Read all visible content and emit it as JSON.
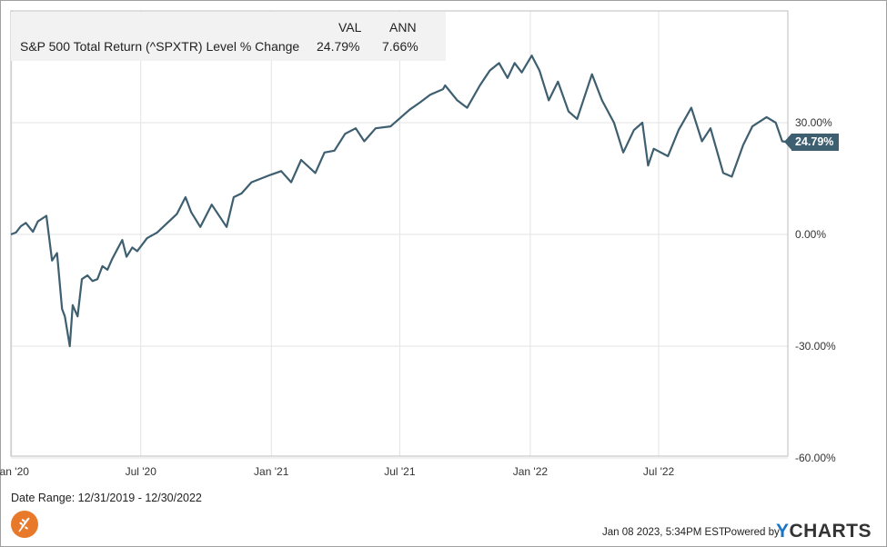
{
  "legend": {
    "col_val": "VAL",
    "col_ann": "ANN",
    "series_name": "S&P 500 Total Return (^SPXTR) Level % Change",
    "val": "24.79%",
    "ann": "7.66%"
  },
  "last_value_label": "24.79%",
  "date_range": "Date Range: 12/31/2019 - 12/30/2022",
  "footer": {
    "timestamp": "Jan 08 2023, 5:34PM EST.",
    "powered_by": "Powered by",
    "brand_y": "Y",
    "brand_rest": "CHARTS"
  },
  "colors": {
    "line": "#3e5f70",
    "grid": "#e3e3e3",
    "brand": "#1a75c7",
    "logo": "#e8792a"
  },
  "chart_data": {
    "type": "line",
    "title": "",
    "xlabel": "",
    "ylabel": "",
    "ylim": [
      -60,
      60
    ],
    "y_ticks": [
      "30.00%",
      "0.00%",
      "-30.00%",
      "-60.00%"
    ],
    "y_tick_values": [
      30,
      0,
      -30,
      -60
    ],
    "x_ticks": [
      "Jan '20",
      "Jul '20",
      "Jan '21",
      "Jul '21",
      "Jan '22",
      "Jul '22"
    ],
    "x_tick_dates": [
      "2020-01-01",
      "2020-07-01",
      "2021-01-01",
      "2021-07-01",
      "2022-01-01",
      "2022-07-01"
    ],
    "grid": true,
    "series": [
      {
        "name": "S&P 500 Total Return (^SPXTR) Level % Change",
        "points": [
          [
            "2019-12-31",
            0.0
          ],
          [
            "2020-01-07",
            0.5
          ],
          [
            "2020-01-14",
            2.2
          ],
          [
            "2020-01-21",
            3.1
          ],
          [
            "2020-01-31",
            0.7
          ],
          [
            "2020-02-07",
            3.5
          ],
          [
            "2020-02-19",
            5.0
          ],
          [
            "2020-02-27",
            -7.0
          ],
          [
            "2020-03-05",
            -5.0
          ],
          [
            "2020-03-12",
            -20.0
          ],
          [
            "2020-03-16",
            -22.0
          ],
          [
            "2020-03-23",
            -30.0
          ],
          [
            "2020-03-27",
            -19.0
          ],
          [
            "2020-04-03",
            -22.0
          ],
          [
            "2020-04-09",
            -12.0
          ],
          [
            "2020-04-17",
            -11.0
          ],
          [
            "2020-04-24",
            -12.5
          ],
          [
            "2020-05-01",
            -12.0
          ],
          [
            "2020-05-08",
            -8.5
          ],
          [
            "2020-05-15",
            -9.5
          ],
          [
            "2020-05-22",
            -6.5
          ],
          [
            "2020-06-05",
            -1.5
          ],
          [
            "2020-06-11",
            -6.0
          ],
          [
            "2020-06-19",
            -3.5
          ],
          [
            "2020-06-26",
            -4.5
          ],
          [
            "2020-07-10",
            -1.0
          ],
          [
            "2020-07-24",
            0.5
          ],
          [
            "2020-08-07",
            3.0
          ],
          [
            "2020-08-21",
            5.5
          ],
          [
            "2020-09-02",
            10.0
          ],
          [
            "2020-09-10",
            6.0
          ],
          [
            "2020-09-23",
            2.0
          ],
          [
            "2020-10-09",
            8.0
          ],
          [
            "2020-10-30",
            2.0
          ],
          [
            "2020-11-09",
            10.0
          ],
          [
            "2020-11-20",
            11.0
          ],
          [
            "2020-12-04",
            14.0
          ],
          [
            "2020-12-31",
            16.0
          ],
          [
            "2021-01-15",
            17.0
          ],
          [
            "2021-01-29",
            14.0
          ],
          [
            "2021-02-12",
            20.0
          ],
          [
            "2021-03-04",
            16.5
          ],
          [
            "2021-03-17",
            22.0
          ],
          [
            "2021-03-31",
            22.5
          ],
          [
            "2021-04-15",
            27.0
          ],
          [
            "2021-04-30",
            28.5
          ],
          [
            "2021-05-12",
            25.0
          ],
          [
            "2021-05-28",
            28.5
          ],
          [
            "2021-06-18",
            29.0
          ],
          [
            "2021-06-30",
            31.0
          ],
          [
            "2021-07-15",
            33.5
          ],
          [
            "2021-07-30",
            35.5
          ],
          [
            "2021-08-13",
            37.5
          ],
          [
            "2021-08-31",
            39.0
          ],
          [
            "2021-09-03",
            40.0
          ],
          [
            "2021-09-20",
            36.0
          ],
          [
            "2021-10-04",
            34.0
          ],
          [
            "2021-10-22",
            40.0
          ],
          [
            "2021-11-05",
            44.0
          ],
          [
            "2021-11-18",
            46.0
          ],
          [
            "2021-11-30",
            42.0
          ],
          [
            "2021-12-10",
            46.0
          ],
          [
            "2021-12-20",
            43.5
          ],
          [
            "2022-01-03",
            48.0
          ],
          [
            "2022-01-14",
            44.0
          ],
          [
            "2022-01-27",
            36.0
          ],
          [
            "2022-02-09",
            41.0
          ],
          [
            "2022-02-24",
            33.0
          ],
          [
            "2022-03-08",
            31.0
          ],
          [
            "2022-03-29",
            43.0
          ],
          [
            "2022-04-12",
            36.0
          ],
          [
            "2022-04-29",
            30.0
          ],
          [
            "2022-05-12",
            22.0
          ],
          [
            "2022-05-27",
            28.0
          ],
          [
            "2022-06-08",
            30.0
          ],
          [
            "2022-06-16",
            18.5
          ],
          [
            "2022-06-24",
            23.0
          ],
          [
            "2022-07-14",
            21.0
          ],
          [
            "2022-07-29",
            28.0
          ],
          [
            "2022-08-16",
            34.0
          ],
          [
            "2022-08-31",
            25.0
          ],
          [
            "2022-09-12",
            28.5
          ],
          [
            "2022-09-30",
            16.5
          ],
          [
            "2022-10-12",
            15.5
          ],
          [
            "2022-10-28",
            24.0
          ],
          [
            "2022-11-10",
            29.0
          ],
          [
            "2022-11-30",
            31.5
          ],
          [
            "2022-12-13",
            30.0
          ],
          [
            "2022-12-22",
            25.0
          ],
          [
            "2022-12-30",
            24.79
          ]
        ]
      }
    ]
  }
}
